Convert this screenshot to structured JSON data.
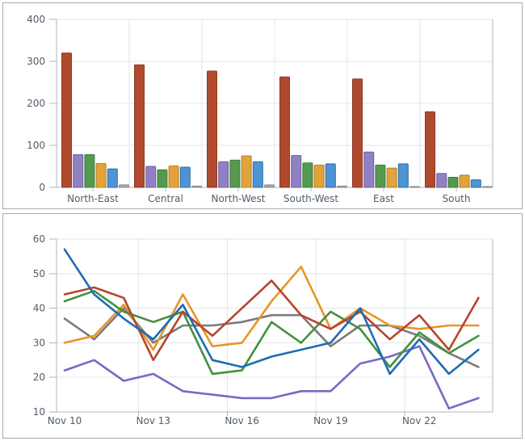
{
  "page": {
    "background": "#ffffff",
    "panel_border": "#a9a9a9",
    "grid_color": "#e4e6e8",
    "axis_color": "#b0b5ba",
    "label_color": "#4f5d6a"
  },
  "chart_data": [
    {
      "type": "bar",
      "title": "",
      "categories": [
        "North-East",
        "Central",
        "North-West",
        "South-West",
        "East",
        "South"
      ],
      "series": [
        {
          "name": "rust",
          "color": "#b04a2e",
          "border": "#8a3a22",
          "values": [
            320,
            292,
            277,
            263,
            258,
            180
          ]
        },
        {
          "name": "purple",
          "color": "#9181c2",
          "border": "#6f60a5",
          "values": [
            78,
            50,
            61,
            76,
            84,
            33
          ]
        },
        {
          "name": "green",
          "color": "#55984f",
          "border": "#3f7a3c",
          "values": [
            78,
            42,
            65,
            58,
            53,
            24
          ]
        },
        {
          "name": "orange",
          "color": "#e3a33b",
          "border": "#b87d1f",
          "values": [
            57,
            51,
            75,
            53,
            46,
            29
          ]
        },
        {
          "name": "blue",
          "color": "#4e94d4",
          "border": "#2e6ca6",
          "values": [
            44,
            48,
            61,
            56,
            56,
            18
          ]
        },
        {
          "name": "gray",
          "color": "#a8a8a8",
          "border": "#8a8a8a",
          "values": [
            6,
            3,
            6,
            3,
            2,
            2
          ]
        }
      ],
      "xlabel": "",
      "ylabel": "",
      "ylim": [
        0,
        400
      ],
      "ystep": 100,
      "y_tick_labels": [
        "0",
        "100",
        "200",
        "300",
        "400"
      ],
      "grid": true,
      "legend": "none"
    },
    {
      "type": "line",
      "title": "",
      "x": [
        "Nov 10",
        "Nov 11",
        "Nov 12",
        "Nov 13",
        "Nov 14",
        "Nov 15",
        "Nov 16",
        "Nov 17",
        "Nov 18",
        "Nov 19",
        "Nov 20",
        "Nov 21",
        "Nov 22",
        "Nov 23",
        "Nov 24"
      ],
      "x_tick_labels": [
        "Nov 10",
        "Nov 13",
        "Nov 16",
        "Nov 19",
        "Nov 22"
      ],
      "x_tick_indices": [
        0,
        3,
        6,
        9,
        12
      ],
      "series": [
        {
          "name": "blue",
          "color": "#1f6cb4",
          "values": [
            57,
            44,
            37,
            31,
            41,
            25,
            23,
            26,
            28,
            30,
            40,
            21,
            31,
            21,
            28
          ]
        },
        {
          "name": "red",
          "color": "#b8442a",
          "values": [
            44,
            46,
            43,
            25,
            39,
            32,
            40,
            48,
            38,
            34,
            39,
            31,
            38,
            28,
            43
          ]
        },
        {
          "name": "green",
          "color": "#43913d",
          "values": [
            42,
            45,
            39,
            36,
            39,
            21,
            22,
            36,
            30,
            39,
            34,
            23,
            33,
            27,
            32
          ]
        },
        {
          "name": "orange",
          "color": "#e89528",
          "values": [
            30,
            32,
            41,
            28,
            44,
            29,
            30,
            42,
            52,
            34,
            40,
            35,
            34,
            35,
            35
          ]
        },
        {
          "name": "gray",
          "color": "#7b7b7b",
          "values": [
            37,
            31,
            40,
            30,
            35,
            35,
            36,
            38,
            38,
            29,
            35,
            35,
            32,
            27,
            23
          ]
        },
        {
          "name": "purple",
          "color": "#7a68c5",
          "values": [
            22,
            25,
            19,
            21,
            16,
            15,
            14,
            14,
            16,
            16,
            24,
            26,
            29,
            11,
            14
          ]
        }
      ],
      "xlabel": "",
      "ylabel": "",
      "ylim": [
        10,
        60
      ],
      "ystep": 10,
      "y_tick_labels": [
        "10",
        "20",
        "30",
        "40",
        "50",
        "60"
      ],
      "grid": true,
      "legend": "none"
    }
  ]
}
